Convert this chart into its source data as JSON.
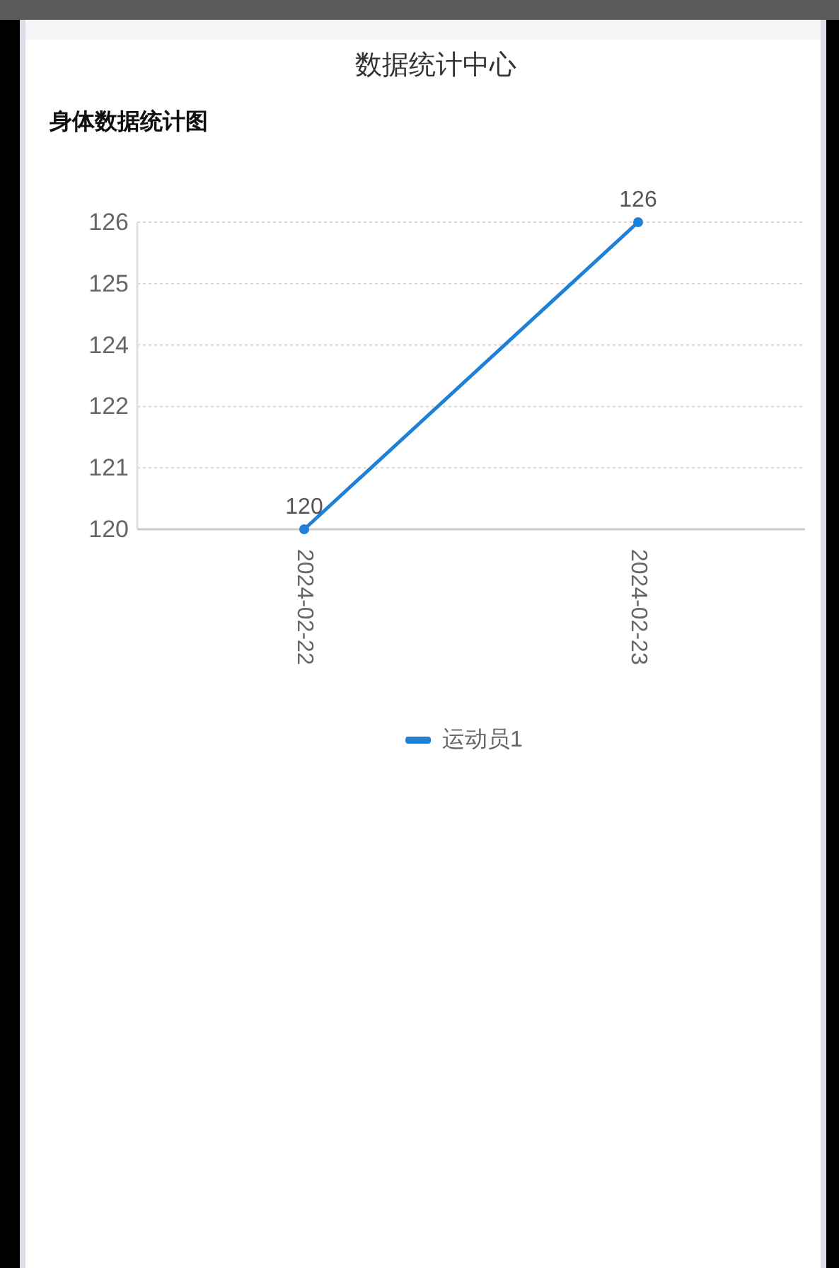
{
  "chart_data": {
    "type": "line",
    "title": "数据统计中心",
    "subtitle": "身体数据统计图",
    "categories": [
      "2024-02-22",
      "2024-02-23"
    ],
    "series": [
      {
        "name": "运动员1",
        "color": "#1f80d8",
        "values": [
          120,
          126
        ]
      }
    ],
    "ylim": [
      120,
      126
    ],
    "yticks": [
      120,
      {
        "value": 121.2,
        "label": "121"
      },
      {
        "value": 122.4,
        "label": "122"
      },
      {
        "value": 123.6,
        "label": "124"
      },
      {
        "value": 124.8,
        "label": "125"
      },
      126
    ],
    "grid": "y",
    "legend": "bottom",
    "marker": "circle",
    "line_style": "solid",
    "data_labels": true
  }
}
